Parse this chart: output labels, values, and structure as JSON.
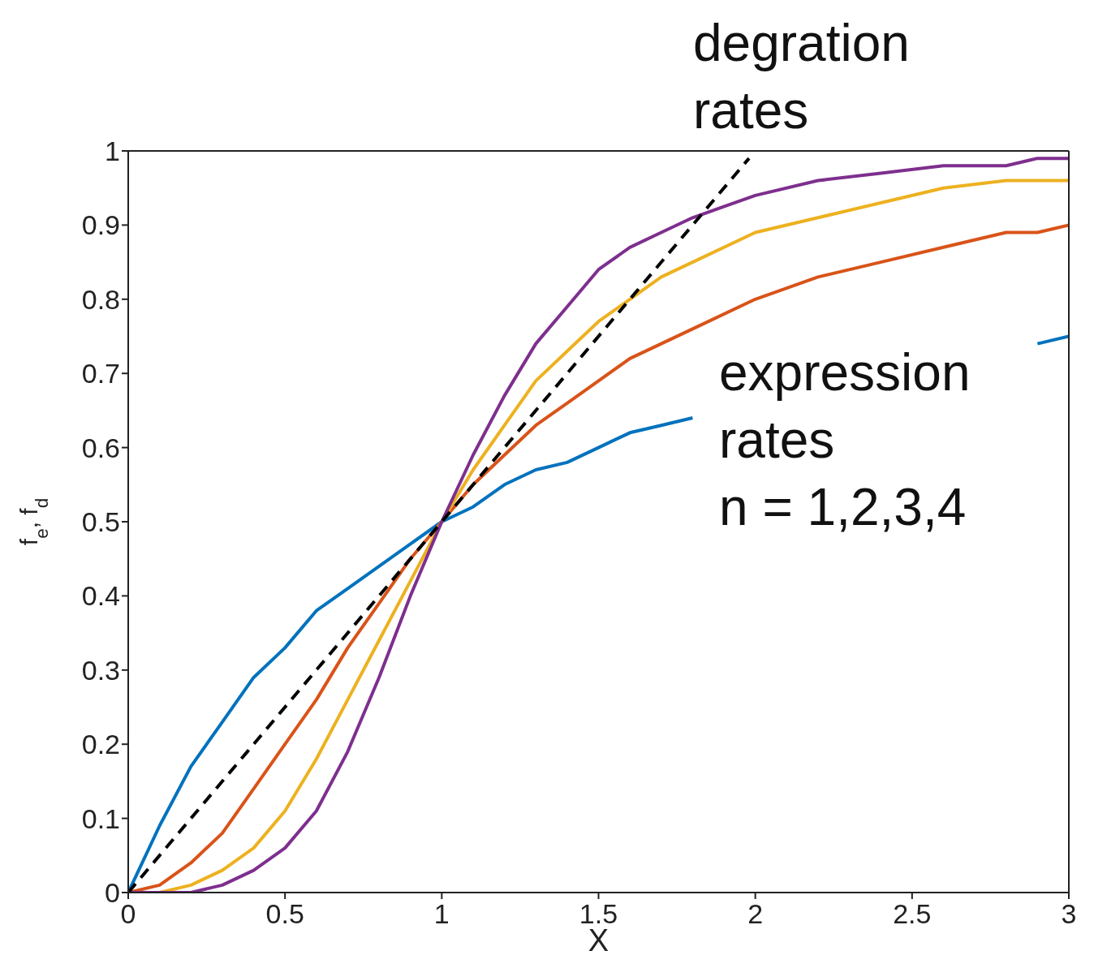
{
  "chart_data": {
    "type": "line",
    "xlabel": "X",
    "ylabel": "f$_{e}$, f$_{d}$",
    "x": [
      0,
      0.1,
      0.2,
      0.3,
      0.4,
      0.5,
      0.6,
      0.7,
      0.8,
      0.9,
      1,
      1.1,
      1.2,
      1.3,
      1.4,
      1.5,
      1.6,
      1.7,
      1.8,
      2,
      2.2,
      2.4,
      2.6,
      2.8,
      2.9,
      3
    ],
    "series": [
      {
        "color": "#0072bd",
        "values": [
          0,
          0.09,
          0.17,
          0.23,
          0.29,
          0.33,
          0.38,
          0.41,
          0.44,
          0.47,
          0.5,
          0.52,
          0.55,
          0.57,
          0.58,
          0.6,
          0.62,
          0.63,
          0.64,
          null,
          null,
          null,
          null,
          null,
          0.74,
          0.75
        ]
      },
      {
        "color": "#d95319",
        "values": [
          0,
          0.01,
          0.04,
          0.08,
          0.14,
          0.2,
          0.26,
          0.33,
          0.39,
          0.45,
          0.5,
          0.55,
          0.59,
          0.63,
          0.66,
          0.69,
          0.72,
          0.74,
          0.76,
          0.8,
          0.83,
          0.85,
          0.87,
          0.89,
          0.89,
          0.9
        ]
      },
      {
        "color": "#edb120",
        "values": [
          0,
          0,
          0.01,
          0.03,
          0.06,
          0.11,
          0.18,
          0.26,
          0.34,
          0.42,
          0.5,
          0.57,
          0.63,
          0.69,
          0.73,
          0.77,
          0.8,
          0.83,
          0.85,
          0.89,
          0.91,
          0.93,
          0.95,
          0.96,
          0.96,
          0.96
        ]
      },
      {
        "color": "#7e2f8e",
        "values": [
          0,
          0,
          0,
          0.01,
          0.03,
          0.06,
          0.11,
          0.19,
          0.29,
          0.4,
          0.5,
          0.59,
          0.67,
          0.74,
          0.79,
          0.84,
          0.87,
          0.89,
          0.91,
          0.94,
          0.96,
          0.97,
          0.98,
          0.98,
          0.99,
          0.99
        ]
      },
      {
        "color": "#000000",
        "x": [
          0,
          1.98
        ],
        "values": [
          0,
          0.99
        ],
        "line_style": "dashed"
      }
    ],
    "xlim": [
      0,
      3
    ],
    "xticks": [
      0,
      0.5,
      1,
      1.5,
      2,
      2.5,
      3
    ],
    "ylim": [
      0,
      1
    ],
    "yticks": [
      0,
      0.1,
      0.2,
      0.3,
      0.4,
      0.5,
      0.6,
      0.7,
      0.8,
      0.9,
      1
    ],
    "legend": false,
    "marker": "none",
    "line_style": "solid",
    "annotations": [
      "degration\nrates",
      "expression\nrates\nn = 1,2,3,4"
    ]
  }
}
